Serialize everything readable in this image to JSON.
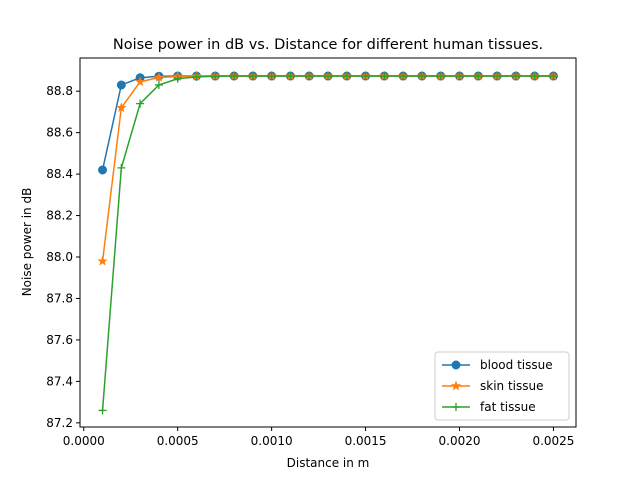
{
  "chart_data": {
    "type": "line",
    "title": "Noise power in dB vs. Distance for different human tissues.",
    "xlabel": "Distance in m",
    "ylabel": "Noise power in dB",
    "xlim": [
      -2e-05,
      0.00262
    ],
    "ylim": [
      87.18,
      88.96
    ],
    "xticks": [
      0.0,
      0.0005,
      0.001,
      0.0015,
      0.002,
      0.0025
    ],
    "xtick_labels": [
      "0.0000",
      "0.0005",
      "0.0010",
      "0.0015",
      "0.0020",
      "0.0025"
    ],
    "yticks": [
      87.2,
      87.4,
      87.6,
      87.8,
      88.0,
      88.2,
      88.4,
      88.6,
      88.8
    ],
    "ytick_labels": [
      "87.2",
      "87.4",
      "87.6",
      "87.8",
      "88.0",
      "88.2",
      "88.4",
      "88.6",
      "88.8"
    ],
    "grid": false,
    "legend_position": "lower-right",
    "x": [
      0.0001,
      0.0002,
      0.0003,
      0.0004,
      0.0005,
      0.0006,
      0.0007,
      0.0008,
      0.0009,
      0.001,
      0.0011,
      0.0012,
      0.0013,
      0.0014,
      0.0015,
      0.0016,
      0.0017,
      0.0018,
      0.0019,
      0.002,
      0.0021,
      0.0022,
      0.0023,
      0.0024,
      0.0025
    ],
    "series": [
      {
        "name": "blood tissue",
        "color": "#1f77b4",
        "marker": "circle",
        "values": [
          88.42,
          88.83,
          88.865,
          88.872,
          88.873,
          88.873,
          88.873,
          88.873,
          88.873,
          88.873,
          88.873,
          88.873,
          88.873,
          88.873,
          88.873,
          88.873,
          88.873,
          88.873,
          88.873,
          88.873,
          88.873,
          88.873,
          88.873,
          88.873,
          88.873
        ]
      },
      {
        "name": "skin tissue",
        "color": "#ff7f0e",
        "marker": "star",
        "values": [
          87.98,
          88.72,
          88.845,
          88.866,
          88.871,
          88.872,
          88.873,
          88.873,
          88.873,
          88.873,
          88.873,
          88.873,
          88.873,
          88.873,
          88.873,
          88.873,
          88.873,
          88.873,
          88.873,
          88.873,
          88.873,
          88.873,
          88.873,
          88.873,
          88.873
        ]
      },
      {
        "name": "fat tissue",
        "color": "#2ca02c",
        "marker": "plus",
        "values": [
          87.26,
          88.43,
          88.74,
          88.83,
          88.86,
          88.869,
          88.872,
          88.873,
          88.873,
          88.873,
          88.873,
          88.873,
          88.873,
          88.873,
          88.873,
          88.873,
          88.873,
          88.873,
          88.873,
          88.873,
          88.873,
          88.873,
          88.873,
          88.873,
          88.873
        ]
      }
    ]
  }
}
